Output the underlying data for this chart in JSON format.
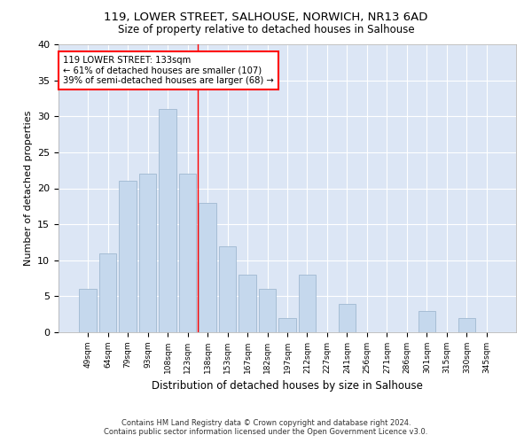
{
  "title1": "119, LOWER STREET, SALHOUSE, NORWICH, NR13 6AD",
  "title2": "Size of property relative to detached houses in Salhouse",
  "xlabel": "Distribution of detached houses by size in Salhouse",
  "ylabel": "Number of detached properties",
  "categories": [
    "49sqm",
    "64sqm",
    "79sqm",
    "93sqm",
    "108sqm",
    "123sqm",
    "138sqm",
    "153sqm",
    "167sqm",
    "182sqm",
    "197sqm",
    "212sqm",
    "227sqm",
    "241sqm",
    "256sqm",
    "271sqm",
    "286sqm",
    "301sqm",
    "315sqm",
    "330sqm",
    "345sqm"
  ],
  "values": [
    6,
    11,
    21,
    22,
    31,
    22,
    18,
    12,
    8,
    6,
    2,
    8,
    0,
    4,
    0,
    0,
    0,
    3,
    0,
    2,
    0
  ],
  "bar_color": "#c5d8ed",
  "bar_edge_color": "#a0b8d0",
  "background_color": "#dce6f5",
  "vline_x": 5.5,
  "vline_color": "red",
  "annotation_line1": "119 LOWER STREET: 133sqm",
  "annotation_line2": "← 61% of detached houses are smaller (107)",
  "annotation_line3": "39% of semi-detached houses are larger (68) →",
  "annotation_box_color": "white",
  "annotation_box_edge": "red",
  "footer1": "Contains HM Land Registry data © Crown copyright and database right 2024.",
  "footer2": "Contains public sector information licensed under the Open Government Licence v3.0.",
  "ylim": [
    0,
    40
  ],
  "yticks": [
    0,
    5,
    10,
    15,
    20,
    25,
    30,
    35,
    40
  ]
}
